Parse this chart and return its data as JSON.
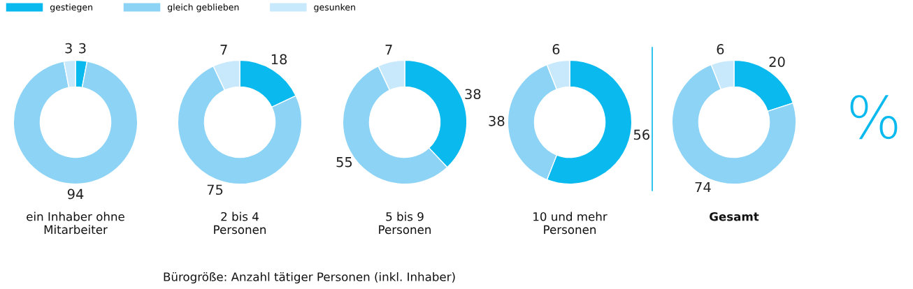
{
  "chart_data": [
    {
      "type": "donut",
      "categories": [
        null,
        null,
        null
      ],
      "values": [
        3,
        94,
        3
      ],
      "colors": [
        "#0ab9ee",
        "#8dd3f6",
        "#c8e9fb"
      ],
      "data_labels": true,
      "xlabel": "ein Inhaber ohne\nMitarbeiter",
      "annotations": [
        "Bürogröße: Anzahl tätiger Personen (inkl. Inhaber)"
      ]
    },
    {
      "type": "donut",
      "categories": [
        "gestiegen",
        "gleich geblieben",
        "gesunken"
      ],
      "values": [
        18,
        75,
        7
      ],
      "colors": [
        "#0ab9ee",
        "#8dd3f6",
        "#c8e9fb"
      ],
      "data_labels": true,
      "xlabel": "2 bis 4\nPersonen",
      "legend": "top left"
    },
    {
      "type": "donut",
      "categories": [
        null,
        null,
        null
      ],
      "values": [
        38,
        55,
        7
      ],
      "colors": [
        "#0ab9ee",
        "#8dd3f6",
        "#c8e9fb"
      ],
      "data_labels": true,
      "xlabel": "5 bis 9\nPersonen"
    },
    {
      "type": "donut",
      "categories": [
        null,
        null,
        null
      ],
      "values": [
        56,
        38,
        6
      ],
      "colors": [
        "#0ab9ee",
        "#8dd3f6",
        "#c8e9fb"
      ],
      "data_labels": true,
      "xlabel": "10 und mehr\nPersonen"
    },
    {
      "type": "donut",
      "categories": [
        null,
        null,
        null
      ],
      "values": [
        20,
        74,
        6
      ],
      "colors": [
        "#0ab9ee",
        "#8dd3f6",
        "#c8e9fb"
      ],
      "data_labels": true,
      "xlabel": "Gesamt",
      "annotations": [
        "%"
      ]
    }
  ]
}
